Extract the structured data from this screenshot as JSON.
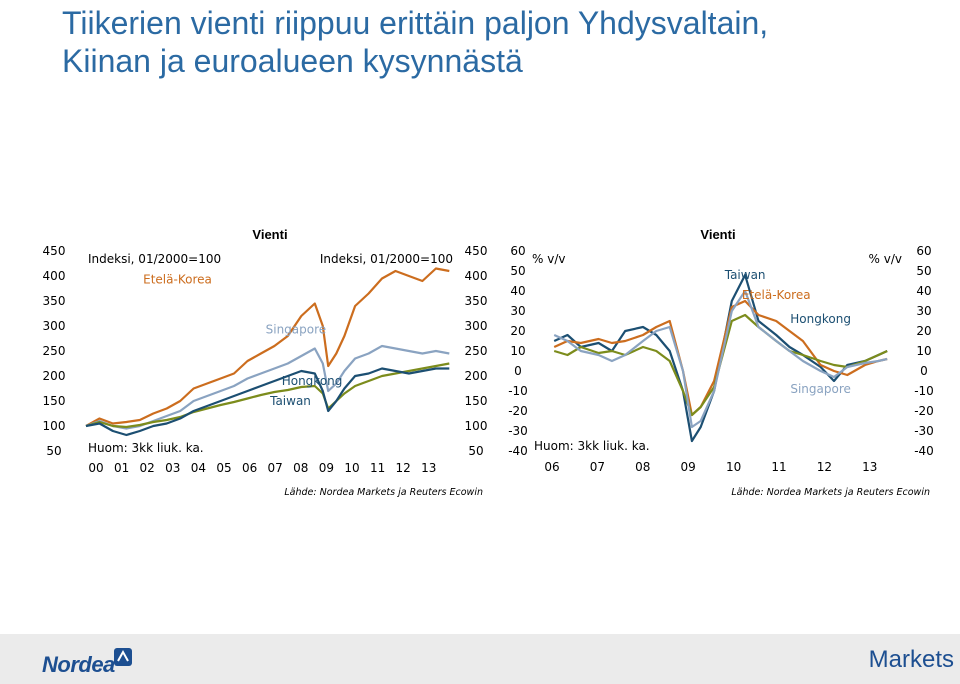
{
  "slide": {
    "title_line1": "Tiikerien vienti riippuu erittäin paljon Yhdysvaltain,",
    "title_line2": "Kiinan ja euroalueen kysynnästä"
  },
  "footer": {
    "logo_left": "Nordea",
    "logo_right": "Markets"
  },
  "colors": {
    "title": "#2b6aa3",
    "korea": "#cc6d1e",
    "singapore": "#8aa3c1",
    "hongkong": "#7c8c1c",
    "taiwan": "#1c4f72",
    "footer_bg": "#ebebeb",
    "brand": "#1d4f91"
  },
  "chart_data": [
    {
      "type": "line",
      "title": "Vienti",
      "left_axis_label": "Indeksi, 01/2000=100",
      "right_axis_label": "Indeksi, 01/2000=100",
      "note": "Huom: 3kk liuk. ka.",
      "source": "Lähde: Nordea Markets ja Reuters Ecowin",
      "ylim": [
        50,
        450
      ],
      "yticks": [
        "450",
        "400",
        "350",
        "300",
        "250",
        "200",
        "150",
        "100",
        "50"
      ],
      "xlim": [
        2000,
        2013.6
      ],
      "xticks": [
        "00",
        "01",
        "02",
        "03",
        "04",
        "05",
        "06",
        "07",
        "08",
        "09",
        "10",
        "11",
        "12",
        "13"
      ],
      "series": [
        {
          "name": "Etelä-Korea",
          "color": "#cc6d1e",
          "x": [
            2000,
            2000.5,
            2001,
            2001.5,
            2002,
            2002.5,
            2003,
            2003.5,
            2004,
            2004.5,
            2005,
            2005.5,
            2006,
            2006.5,
            2007,
            2007.5,
            2008,
            2008.5,
            2008.8,
            2009,
            2009.3,
            2009.6,
            2010,
            2010.5,
            2011,
            2011.5,
            2012,
            2012.5,
            2013,
            2013.5
          ],
          "values": [
            100,
            115,
            105,
            108,
            112,
            125,
            135,
            150,
            175,
            185,
            195,
            205,
            230,
            245,
            260,
            280,
            320,
            345,
            300,
            220,
            245,
            280,
            340,
            365,
            395,
            410,
            400,
            390,
            415,
            410
          ]
        },
        {
          "name": "Singapore",
          "color": "#8aa3c1",
          "x": [
            2000,
            2000.5,
            2001,
            2001.5,
            2002,
            2002.5,
            2003,
            2003.5,
            2004,
            2004.5,
            2005,
            2005.5,
            2006,
            2006.5,
            2007,
            2007.5,
            2008,
            2008.5,
            2008.8,
            2009,
            2009.3,
            2009.6,
            2010,
            2010.5,
            2011,
            2011.5,
            2012,
            2012.5,
            2013,
            2013.5
          ],
          "values": [
            100,
            110,
            100,
            95,
            100,
            110,
            120,
            130,
            150,
            160,
            170,
            180,
            195,
            205,
            215,
            225,
            240,
            255,
            225,
            170,
            185,
            210,
            235,
            245,
            260,
            255,
            250,
            245,
            250,
            245
          ]
        },
        {
          "name": "Hongkong",
          "color": "#7c8c1c",
          "x": [
            2000,
            2000.5,
            2001,
            2001.5,
            2002,
            2002.5,
            2003,
            2003.5,
            2004,
            2004.5,
            2005,
            2005.5,
            2006,
            2006.5,
            2007,
            2007.5,
            2008,
            2008.5,
            2008.8,
            2009,
            2009.3,
            2009.6,
            2010,
            2010.5,
            2011,
            2011.5,
            2012,
            2012.5,
            2013,
            2013.5
          ],
          "values": [
            100,
            108,
            100,
            98,
            102,
            108,
            112,
            118,
            128,
            135,
            142,
            148,
            155,
            162,
            168,
            172,
            178,
            180,
            165,
            135,
            150,
            165,
            180,
            190,
            200,
            205,
            210,
            215,
            220,
            225
          ]
        },
        {
          "name": "Taiwan",
          "color": "#1c4f72",
          "x": [
            2000,
            2000.5,
            2001,
            2001.5,
            2002,
            2002.5,
            2003,
            2003.5,
            2004,
            2004.5,
            2005,
            2005.5,
            2006,
            2006.5,
            2007,
            2007.5,
            2008,
            2008.5,
            2008.8,
            2009,
            2009.3,
            2009.6,
            2010,
            2010.5,
            2011,
            2011.5,
            2012,
            2012.5,
            2013,
            2013.5
          ],
          "values": [
            100,
            105,
            90,
            82,
            90,
            100,
            105,
            115,
            130,
            140,
            150,
            160,
            170,
            180,
            190,
            200,
            210,
            205,
            170,
            130,
            150,
            175,
            200,
            205,
            215,
            210,
            205,
            210,
            215,
            215
          ]
        }
      ],
      "labels": [
        {
          "text": "Etelä-Korea",
          "x": 2003.4,
          "y": 385
        },
        {
          "text": "Singapore",
          "x": 2007.8,
          "y": 285
        },
        {
          "text": "Hongkong",
          "x": 2008.4,
          "y": 182
        },
        {
          "text": "Taiwan",
          "x": 2007.6,
          "y": 142
        }
      ]
    },
    {
      "type": "line",
      "title": "Vienti",
      "left_axis_label": "% v/v",
      "right_axis_label": "% v/v",
      "note": "Huom: 3kk liuk. ka.",
      "source": "Lähde: Nordea Markets ja Reuters Ecowin",
      "ylim": [
        -40,
        60
      ],
      "yticks": [
        "60",
        "50",
        "40",
        "30",
        "20",
        "10",
        "0",
        "-10",
        "-20",
        "-30",
        "-40"
      ],
      "xlim": [
        2005.5,
        2013.9
      ],
      "xticks": [
        "06",
        "07",
        "08",
        "09",
        "10",
        "11",
        "12",
        "13"
      ],
      "series": [
        {
          "name": "Taiwan",
          "color": "#1c4f72",
          "x": [
            2006,
            2006.3,
            2006.6,
            2007,
            2007.3,
            2007.6,
            2008,
            2008.3,
            2008.6,
            2008.9,
            2009.1,
            2009.3,
            2009.6,
            2010,
            2010.3,
            2010.6,
            2011,
            2011.3,
            2011.6,
            2012,
            2012.3,
            2012.6,
            2013,
            2013.3,
            2013.5
          ],
          "values": [
            15,
            18,
            12,
            14,
            10,
            20,
            22,
            18,
            10,
            -10,
            -35,
            -28,
            -10,
            35,
            48,
            25,
            18,
            12,
            8,
            2,
            -5,
            3,
            5,
            8,
            10
          ]
        },
        {
          "name": "Etelä-Korea",
          "color": "#cc6d1e",
          "x": [
            2006,
            2006.3,
            2006.6,
            2007,
            2007.3,
            2007.6,
            2008,
            2008.3,
            2008.6,
            2008.9,
            2009.1,
            2009.3,
            2009.6,
            2010,
            2010.3,
            2010.6,
            2011,
            2011.3,
            2011.6,
            2012,
            2012.3,
            2012.6,
            2013,
            2013.3,
            2013.5
          ],
          "values": [
            12,
            15,
            14,
            16,
            14,
            15,
            18,
            22,
            25,
            0,
            -22,
            -18,
            -5,
            32,
            35,
            28,
            25,
            20,
            15,
            3,
            0,
            -2,
            3,
            5,
            6
          ]
        },
        {
          "name": "Hongkong",
          "color": "#7c8c1c",
          "x": [
            2006,
            2006.3,
            2006.6,
            2007,
            2007.3,
            2007.6,
            2008,
            2008.3,
            2008.6,
            2008.9,
            2009.1,
            2009.3,
            2009.6,
            2010,
            2010.3,
            2010.6,
            2011,
            2011.3,
            2011.6,
            2012,
            2012.3,
            2012.6,
            2013,
            2013.3,
            2013.5
          ],
          "values": [
            10,
            8,
            12,
            9,
            10,
            8,
            12,
            10,
            5,
            -10,
            -22,
            -18,
            -8,
            25,
            28,
            22,
            15,
            10,
            8,
            5,
            3,
            2,
            5,
            8,
            10
          ]
        },
        {
          "name": "Singapore",
          "color": "#8aa3c1",
          "x": [
            2006,
            2006.3,
            2006.6,
            2007,
            2007.3,
            2007.6,
            2008,
            2008.3,
            2008.6,
            2008.9,
            2009.1,
            2009.3,
            2009.6,
            2010,
            2010.3,
            2010.6,
            2011,
            2011.3,
            2011.6,
            2012,
            2012.3,
            2012.6,
            2013,
            2013.3,
            2013.5
          ],
          "values": [
            18,
            15,
            10,
            8,
            5,
            8,
            15,
            20,
            22,
            0,
            -28,
            -25,
            -10,
            30,
            40,
            22,
            15,
            10,
            5,
            0,
            -3,
            2,
            4,
            5,
            6
          ]
        }
      ],
      "labels": [
        {
          "text": "Taiwan",
          "x": 2010.3,
          "y": 46
        },
        {
          "text": "Etelä-Korea",
          "x": 2011.0,
          "y": 36
        },
        {
          "text": "Hongkong",
          "x": 2012.0,
          "y": 24
        },
        {
          "text": "Singapore",
          "x": 2012.0,
          "y": -11
        }
      ]
    }
  ]
}
